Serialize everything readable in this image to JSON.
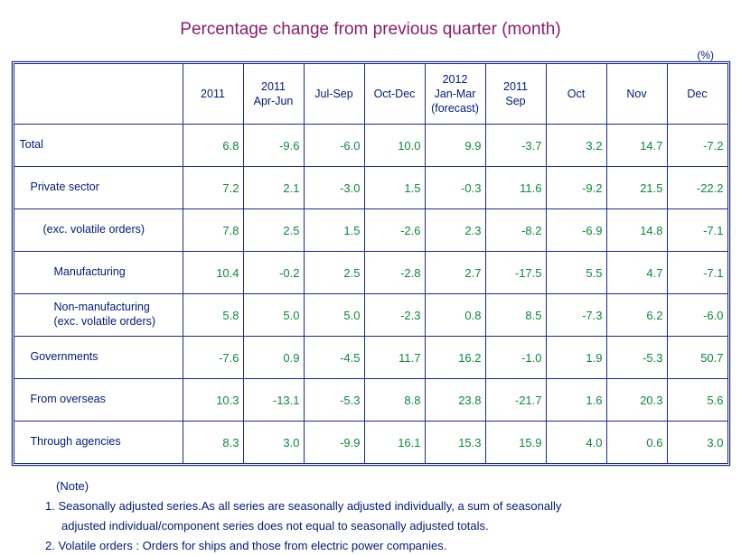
{
  "title": "Percentage change from previous quarter (month)",
  "unit_label": "(%)",
  "title_color": "#8b1c6d",
  "title_fontsize": 19,
  "text_color": "#001a7a",
  "value_color": "#0a8a3a",
  "border_color": "#1a2a8a",
  "background_color": "#ffffff",
  "columns": [
    "",
    "2011",
    "2011\nApr-Jun",
    "Jul-Sep",
    "Oct-Dec",
    "2012\nJan-Mar\n(forecast)",
    "2011\nSep",
    "Oct",
    "Nov",
    "Dec"
  ],
  "rows": [
    {
      "label": "Total",
      "indent": "total",
      "values": [
        "6.8",
        "-9.6",
        "-6.0",
        "10.0",
        "9.9",
        "-3.7",
        "3.2",
        "14.7",
        "-7.2"
      ]
    },
    {
      "label": "Private sector",
      "indent": "l1",
      "values": [
        "7.2",
        "2.1",
        "-3.0",
        "1.5",
        "-0.3",
        "11.6",
        "-9.2",
        "21.5",
        "-22.2"
      ]
    },
    {
      "label": "(exc. volatile orders)",
      "indent": "l2",
      "values": [
        "7.8",
        "2.5",
        "1.5",
        "-2.6",
        "2.3",
        "-8.2",
        "-6.9",
        "14.8",
        "-7.1"
      ]
    },
    {
      "label": "Manufacturing",
      "indent": "l3",
      "values": [
        "10.4",
        "-0.2",
        "2.5",
        "-2.8",
        "2.7",
        "-17.5",
        "5.5",
        "4.7",
        "-7.1"
      ]
    },
    {
      "label": "Non-manufacturing\n(exc. volatile orders)",
      "indent": "l3",
      "values": [
        "5.8",
        "5.0",
        "5.0",
        "-2.3",
        "0.8",
        "8.5",
        "-7.3",
        "6.2",
        "-6.0"
      ]
    },
    {
      "label": "Governments",
      "indent": "l1",
      "values": [
        "-7.6",
        "0.9",
        "-4.5",
        "11.7",
        "16.2",
        "-1.0",
        "1.9",
        "-5.3",
        "50.7"
      ]
    },
    {
      "label": "From overseas",
      "indent": "l1",
      "values": [
        "10.3",
        "-13.1",
        "-5.3",
        "8.8",
        "23.8",
        "-21.7",
        "1.6",
        "20.3",
        "5.6"
      ]
    },
    {
      "label": "Through agencies",
      "indent": "l1",
      "values": [
        "8.3",
        "3.0",
        "-9.9",
        "16.1",
        "15.3",
        "15.9",
        "4.0",
        "0.6",
        "3.0"
      ]
    }
  ],
  "notes": {
    "header": "(Note)",
    "items": [
      "1. Seasonally adjusted series.As all series are seasonally adjusted individually,  a sum of seasonally\nadjusted individual/component series does not equal to seasonally adjusted totals.",
      "2. Volatile orders : Orders for ships and those from electric power companies."
    ]
  }
}
